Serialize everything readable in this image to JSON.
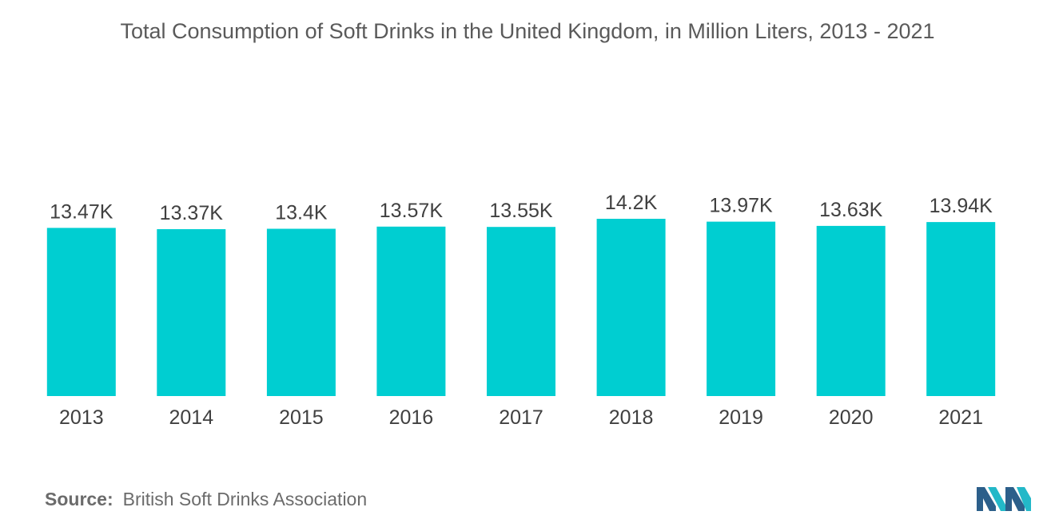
{
  "chart_data": {
    "type": "bar",
    "title": "Total Consumption of Soft Drinks in the United Kingdom, in Million Liters, 2013 - 2021",
    "categories": [
      "2013",
      "2014",
      "2015",
      "2016",
      "2017",
      "2018",
      "2019",
      "2020",
      "2021"
    ],
    "values": [
      13470,
      13370,
      13400,
      13570,
      13550,
      14200,
      13970,
      13630,
      13940
    ],
    "data_labels": [
      "13.47K",
      "13.37K",
      "13.4K",
      "13.57K",
      "13.55K",
      "14.2K",
      "13.97K",
      "13.63K",
      "13.94K"
    ],
    "xlabel": "",
    "ylabel": "",
    "ylim": [
      0,
      16500
    ],
    "grid": false,
    "legend": "none",
    "bar_color": "#00ced1"
  },
  "source": {
    "label": "Source:",
    "text": "British Soft Drinks Association"
  },
  "logo": {
    "icon": "mordor-intelligence-logo-icon",
    "colors": [
      "#2c5f8a",
      "#23b8c8"
    ]
  }
}
